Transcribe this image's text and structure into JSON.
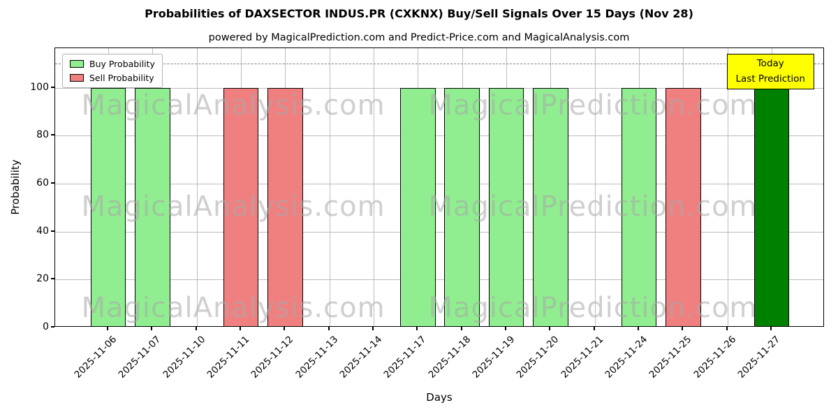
{
  "chart_data": {
    "type": "bar",
    "title": "Probabilities of DAXSECTOR INDUS.PR (CXKNX) Buy/Sell Signals Over 15 Days (Nov 28)",
    "subtitle": "powered by MagicalPrediction.com and Predict-Price.com and MagicalAnalysis.com",
    "xlabel": "Days",
    "ylabel": "Probability",
    "ylim": [
      0,
      116.5
    ],
    "yticks": [
      0,
      20,
      40,
      60,
      80,
      100
    ],
    "grid": true,
    "legend_position": "upper left",
    "dashed_line_y": 110,
    "categories": [
      "2025-11-06",
      "2025-11-07",
      "2025-11-10",
      "2025-11-11",
      "2025-11-12",
      "2025-11-13",
      "2025-11-14",
      "2025-11-17",
      "2025-11-18",
      "2025-11-19",
      "2025-11-20",
      "2025-11-21",
      "2025-11-24",
      "2025-11-25",
      "2025-11-26",
      "2025-11-27"
    ],
    "series": [
      {
        "name": "Buy Probability",
        "signal": "buy",
        "color": "#90ee90",
        "values": [
          100,
          100,
          0,
          0,
          0,
          0,
          0,
          100,
          100,
          100,
          100,
          0,
          100,
          0,
          0,
          0
        ]
      },
      {
        "name": "Sell Probability",
        "signal": "sell",
        "color": "#f08080",
        "values": [
          0,
          0,
          0,
          100,
          100,
          0,
          0,
          0,
          0,
          0,
          0,
          0,
          0,
          100,
          0,
          0
        ]
      },
      {
        "name": "Today Last Prediction",
        "signal": "today",
        "color": "#008000",
        "values": [
          0,
          0,
          0,
          0,
          0,
          0,
          0,
          0,
          0,
          0,
          0,
          0,
          0,
          0,
          0,
          100
        ]
      }
    ],
    "legend": {
      "items": [
        {
          "label": "Buy Probability",
          "color": "#90ee90"
        },
        {
          "label": "Sell Probability",
          "color": "#f08080"
        }
      ]
    },
    "annotation": {
      "line1": "Today",
      "line2": "Last Prediction",
      "bg_color": "#ffff00"
    },
    "watermarks": [
      "MagicalAnalysis.com",
      "MagicalPrediction.com"
    ],
    "colors": {
      "grid": "#bcbcbc",
      "dashed_line": "#7f7f7f",
      "bar_edge": "#000000"
    }
  }
}
